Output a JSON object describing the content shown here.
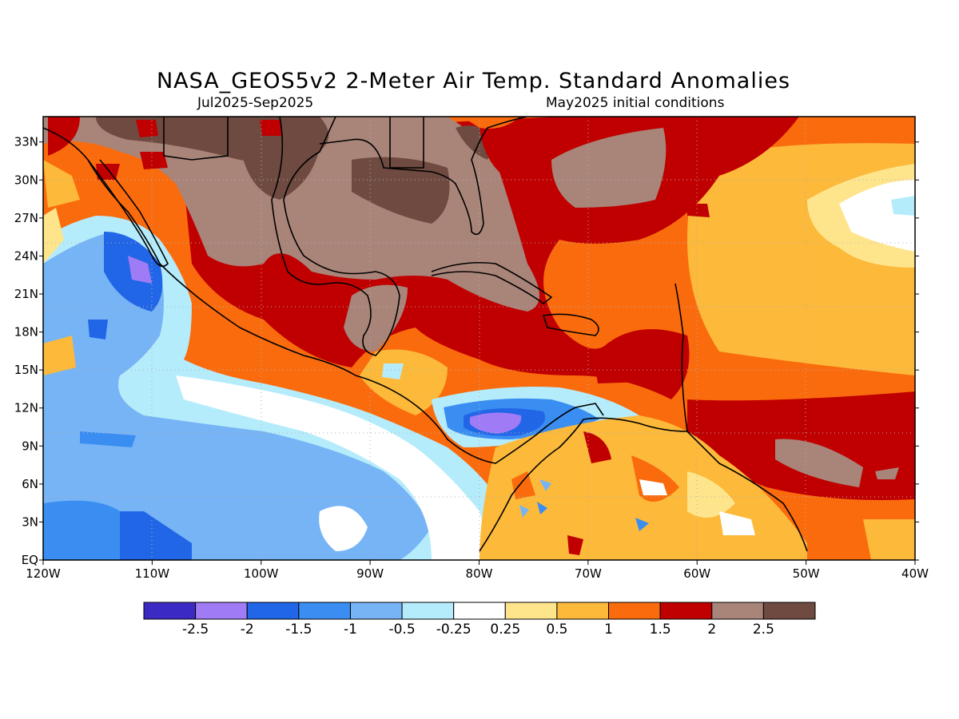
{
  "title": "NASA_GEOS5v2 2-Meter Air Temp. Standard Anomalies",
  "subtitle_left": "Jul2025-Sep2025",
  "subtitle_right": "May2025 initial conditions",
  "map": {
    "lon_range": [
      -120,
      -40
    ],
    "lat_range": [
      0,
      35
    ],
    "lon_labels": [
      "120W",
      "110W",
      "100W",
      "90W",
      "80W",
      "70W",
      "60W",
      "50W",
      "40W"
    ],
    "lat_labels": [
      "EQ",
      "3N",
      "6N",
      "9N",
      "12N",
      "15N",
      "18N",
      "21N",
      "24N",
      "27N",
      "30N",
      "33N"
    ]
  },
  "colorbar": {
    "colors": [
      "#3b2bc4",
      "#9f7cf5",
      "#2266e8",
      "#3a8ef2",
      "#77b4f5",
      "#b5ecfb",
      "#ffffff",
      "#fee58c",
      "#fcb93a",
      "#fa6b0d",
      "#c00000",
      "#a98479",
      "#6e4a40"
    ],
    "labels": [
      "-2.5",
      "-2",
      "-1.5",
      "-1",
      "-0.5",
      "-0.25",
      "0.25",
      "0.5",
      "1",
      "1.5",
      "2",
      "2.5"
    ]
  }
}
